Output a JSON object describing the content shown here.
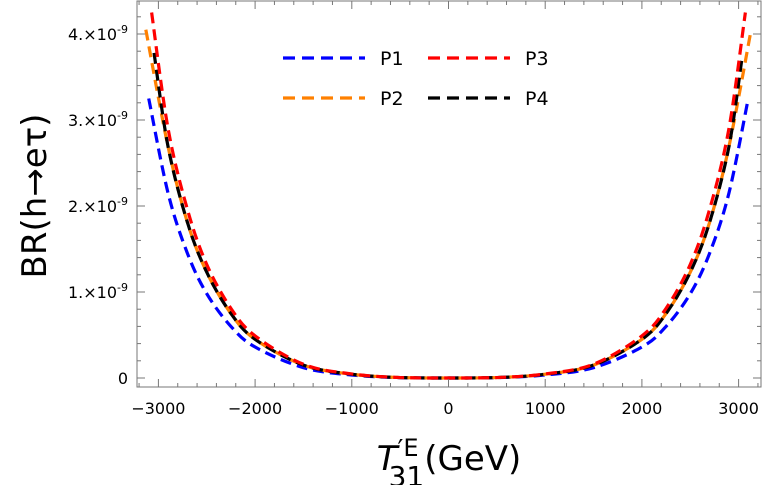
{
  "chart_data": {
    "type": "line",
    "title": "",
    "xlabel": {
      "main": "T",
      "prime": "′",
      "sup": "E",
      "sub": "31",
      "unit": "(GeV)"
    },
    "ylabel": "BR(h→eτ)",
    "xlim": [
      -3200,
      3250
    ],
    "ylim": [
      0,
      4.4e-09
    ],
    "x_ticks": [
      -3000,
      -2000,
      -1000,
      0,
      1000,
      2000,
      3000
    ],
    "x_tick_labels": [
      "−3000",
      "−2000",
      "−1000",
      "0",
      "1000",
      "2000",
      "3000"
    ],
    "y_ticks": [
      0,
      1e-09,
      2e-09,
      3e-09,
      4e-09
    ],
    "y_tick_labels": [
      "0",
      "1.×10",
      "2.×10",
      "3.×10",
      "4.×10"
    ],
    "y_tick_exponent": "-9",
    "grid": false,
    "legend_placement": "top-center",
    "series": [
      {
        "name": "P1",
        "color": "#0000ff",
        "x": [
          -3100,
          -2900,
          -2700,
          -2500,
          -2250,
          -2000,
          -1500,
          -1000,
          -500,
          0,
          500,
          1000,
          1500,
          2000,
          2250,
          2500,
          2700,
          2900,
          3100
        ],
        "y": [
          3.25e-09,
          2.15e-09,
          1.45e-09,
          9.8e-10,
          6e-10,
          3.6e-10,
          1.2e-10,
          3.5e-11,
          4e-12,
          0,
          4e-12,
          3.5e-11,
          1.2e-10,
          3.6e-10,
          6e-10,
          9.8e-10,
          1.45e-09,
          2.15e-09,
          3.25e-09
        ]
      },
      {
        "name": "P2",
        "color": "#ff8000",
        "x": [
          -3130,
          -2900,
          -2700,
          -2500,
          -2250,
          -2000,
          -1500,
          -1000,
          -500,
          0,
          500,
          1000,
          1500,
          2000,
          2250,
          2500,
          2700,
          2900,
          3130
        ],
        "y": [
          4.05e-09,
          2.69e-09,
          1.81e-09,
          1.23e-09,
          7.5e-10,
          4.5e-10,
          1.5e-10,
          4.4e-11,
          5e-12,
          0,
          5e-12,
          4.4e-11,
          1.5e-10,
          4.5e-10,
          7.5e-10,
          1.23e-09,
          1.81e-09,
          2.69e-09,
          4.05e-09
        ]
      },
      {
        "name": "P3",
        "color": "#ff0000",
        "x": [
          -3070,
          -2900,
          -2700,
          -2500,
          -2250,
          -2000,
          -1500,
          -1000,
          -500,
          0,
          500,
          1000,
          1500,
          2000,
          2250,
          2500,
          2700,
          2900,
          3070
        ],
        "y": [
          4.25e-09,
          2.9e-09,
          1.96e-09,
          1.32e-09,
          8.1e-10,
          4.9e-10,
          1.6e-10,
          4.7e-11,
          5e-12,
          0,
          5e-12,
          4.7e-11,
          1.6e-10,
          4.9e-10,
          8.1e-10,
          1.32e-09,
          1.96e-09,
          2.9e-09,
          4.25e-09
        ]
      },
      {
        "name": "P4",
        "color": "#000000",
        "x": [
          -3045,
          -2900,
          -2700,
          -2500,
          -2250,
          -2000,
          -1500,
          -1000,
          -500,
          0,
          500,
          1000,
          1500,
          2000,
          2250,
          2500,
          2700,
          2900,
          3035
        ],
        "y": [
          3.78e-09,
          2.69e-09,
          1.81e-09,
          1.23e-09,
          7.5e-10,
          4.5e-10,
          1.5e-10,
          4.4e-11,
          5e-12,
          0,
          5e-12,
          4.4e-11,
          1.5e-10,
          4.5e-10,
          7.5e-10,
          1.23e-09,
          1.81e-09,
          2.69e-09,
          3.72e-09
        ]
      }
    ]
  }
}
